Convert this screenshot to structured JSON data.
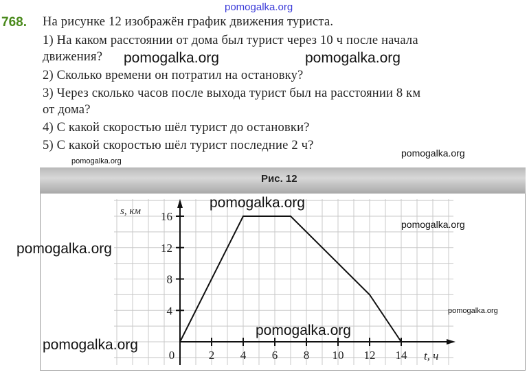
{
  "problem": {
    "number": "768.",
    "intro": "На рисунке 12 изображён график движения туриста.",
    "questions": [
      "1) На каком расстоянии от дома был турист через 10 ч после начала",
      "движения?",
      "2) Сколько времени он потратил на остановку?",
      "3) Через сколько часов после выхода турист был на расстоянии 8 км",
      "от дома?",
      "4) С какой скоростью шёл турист до остановки?",
      "5) С какой скоростью шёл турист последние 2 ч?"
    ]
  },
  "figure": {
    "caption": "Рис. 12"
  },
  "watermarks": [
    "pomogalka.org",
    "pomogalka.org",
    "pomogalka.org",
    "pomogalka.org",
    "pomogalka.org",
    "pomogalka.org",
    "pomogalka.org",
    "pomogalka.org",
    "pomogalka.org",
    "pomogalka.org",
    "pomogalka.org"
  ],
  "chart_data": {
    "type": "line",
    "xlabel": "t, ч",
    "ylabel": "s, км",
    "xlim": [
      0,
      14
    ],
    "ylim": [
      0,
      16
    ],
    "x_ticks": [
      "0",
      "2",
      "4",
      "6",
      "8",
      "10",
      "12",
      "14"
    ],
    "y_ticks": [
      "4",
      "8",
      "12",
      "16"
    ],
    "grid": true,
    "series": [
      {
        "x": [
          0,
          4,
          7,
          12,
          14
        ],
        "y": [
          0,
          16,
          16,
          6,
          0
        ]
      }
    ],
    "line_color": "#111111"
  }
}
